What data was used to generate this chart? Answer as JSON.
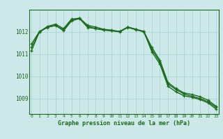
{
  "x": [
    0,
    1,
    2,
    3,
    4,
    5,
    6,
    7,
    8,
    9,
    10,
    11,
    12,
    13,
    14,
    15,
    16,
    17,
    18,
    19,
    20,
    21,
    22,
    23
  ],
  "line1": [
    1011.3,
    1012.0,
    1012.2,
    1012.3,
    1012.05,
    1012.5,
    1012.6,
    1012.2,
    1012.15,
    1012.1,
    1012.05,
    1012.0,
    1012.2,
    1012.1,
    1012.0,
    1011.2,
    1010.65,
    1009.65,
    1009.4,
    1009.2,
    1009.1,
    1009.0,
    1008.85,
    1008.6
  ],
  "line2": [
    1011.15,
    1012.0,
    1012.25,
    1012.35,
    1012.15,
    1012.58,
    1012.62,
    1012.25,
    1012.15,
    1012.08,
    1012.05,
    1012.02,
    1012.22,
    1012.12,
    1012.02,
    1011.1,
    1010.55,
    1009.55,
    1009.3,
    1009.12,
    1009.05,
    1008.95,
    1008.8,
    1008.52
  ],
  "line3": [
    1011.45,
    1012.02,
    1012.22,
    1012.28,
    1012.1,
    1012.52,
    1012.62,
    1012.3,
    1012.22,
    1012.12,
    1012.08,
    1012.02,
    1012.22,
    1012.12,
    1012.02,
    1011.3,
    1010.72,
    1009.72,
    1009.45,
    1009.25,
    1009.18,
    1009.08,
    1008.92,
    1008.65
  ],
  "line_color": "#1a6b1a",
  "bg_color": "#cce8e8",
  "grid_color": "#aad4d4",
  "text_color": "#1a6b1a",
  "xlabel": "Graphe pression niveau de la mer (hPa)",
  "yticks": [
    1009,
    1010,
    1011,
    1012
  ],
  "xticks": [
    0,
    1,
    2,
    3,
    4,
    5,
    6,
    7,
    8,
    9,
    10,
    11,
    12,
    13,
    14,
    15,
    16,
    17,
    18,
    19,
    20,
    21,
    22,
    23
  ],
  "ylim": [
    1008.3,
    1013.0
  ],
  "xlim": [
    -0.3,
    23.3
  ],
  "marker": "+",
  "markersize": 3.5,
  "linewidth": 1.0
}
